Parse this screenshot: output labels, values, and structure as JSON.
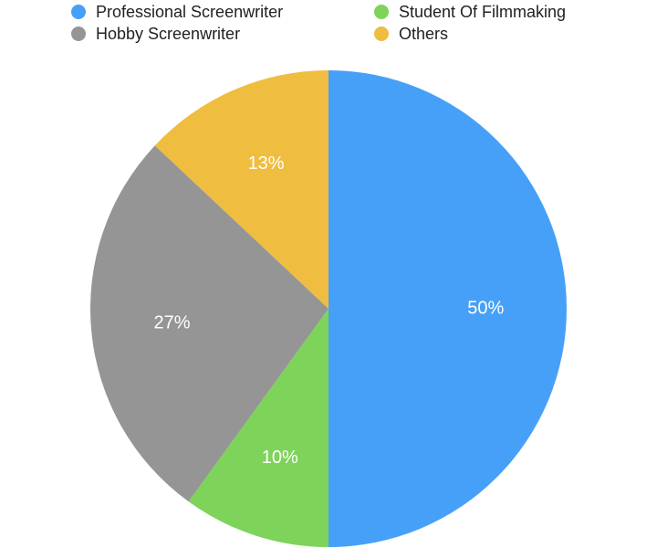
{
  "chart_data": {
    "type": "pie",
    "categories": [
      "Professional Screenwriter",
      "Student Of Filmmaking",
      "Hobby Screenwriter",
      "Others"
    ],
    "values": [
      50,
      10,
      27,
      13
    ],
    "value_labels": [
      "50%",
      "10%",
      "27%",
      "13%"
    ],
    "colors": [
      "#47a0f8",
      "#7ed35a",
      "#959595",
      "#efbd3f"
    ],
    "legend": "top"
  }
}
